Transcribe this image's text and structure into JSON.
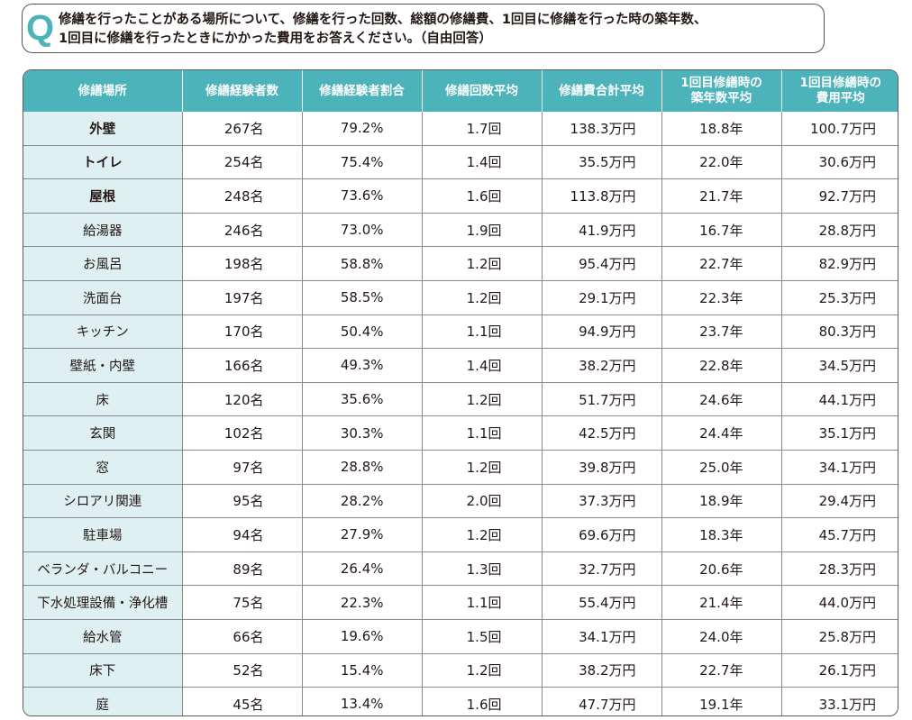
{
  "question": {
    "icon": "Q",
    "line1": "修繕を行ったことがある場所について、修繕を行った回数、総額の修繕費、1回目に修繕を行った時の築年数、",
    "line2": "1回目に修繕を行ったときにかかった費用をお答えください。（自由回答）"
  },
  "table": {
    "headers": [
      {
        "line1": "修繕場所",
        "line2": ""
      },
      {
        "line1": "修繕経験者数",
        "line2": ""
      },
      {
        "line1": "修繕経験者割合",
        "line2": ""
      },
      {
        "line1": "修繕回数平均",
        "line2": ""
      },
      {
        "line1": "修繕費合計平均",
        "line2": ""
      },
      {
        "line1": "1回目修繕時の",
        "line2": "築年数平均"
      },
      {
        "line1": "1回目修繕時の",
        "line2": "費用平均"
      }
    ],
    "rows": [
      [
        "外壁",
        "267名",
        "79.2%",
        "1.7回",
        "138.3万円",
        "18.8年",
        "100.7万円"
      ],
      [
        "トイレ",
        "254名",
        "75.4%",
        "1.4回",
        "35.5万円",
        "22.0年",
        "30.6万円"
      ],
      [
        "屋根",
        "248名",
        "73.6%",
        "1.6回",
        "113.8万円",
        "21.7年",
        "92.7万円"
      ],
      [
        "給湯器",
        "246名",
        "73.0%",
        "1.9回",
        "41.9万円",
        "16.7年",
        "28.8万円"
      ],
      [
        "お風呂",
        "198名",
        "58.8%",
        "1.2回",
        "95.4万円",
        "22.7年",
        "82.9万円"
      ],
      [
        "洗面台",
        "197名",
        "58.5%",
        "1.2回",
        "29.1万円",
        "22.3年",
        "25.3万円"
      ],
      [
        "キッチン",
        "170名",
        "50.4%",
        "1.1回",
        "94.9万円",
        "23.7年",
        "80.3万円"
      ],
      [
        "壁紙・内壁",
        "166名",
        "49.3%",
        "1.4回",
        "38.2万円",
        "22.8年",
        "34.5万円"
      ],
      [
        "床",
        "120名",
        "35.6%",
        "1.2回",
        "51.7万円",
        "24.6年",
        "44.1万円"
      ],
      [
        "玄関",
        "102名",
        "30.3%",
        "1.1回",
        "42.5万円",
        "24.4年",
        "35.1万円"
      ],
      [
        "窓",
        "97名",
        "28.8%",
        "1.2回",
        "39.8万円",
        "25.0年",
        "34.1万円"
      ],
      [
        "シロアリ関連",
        "95名",
        "28.2%",
        "2.0回",
        "37.3万円",
        "18.9年",
        "29.4万円"
      ],
      [
        "駐車場",
        "94名",
        "27.9%",
        "1.2回",
        "69.6万円",
        "18.3年",
        "45.7万円"
      ],
      [
        "ベランダ・バルコニー",
        "89名",
        "26.4%",
        "1.3回",
        "32.7万円",
        "20.6年",
        "28.3万円"
      ],
      [
        "下水処理設備・浄化槽",
        "75名",
        "22.3%",
        "1.1回",
        "55.4万円",
        "21.4年",
        "44.0万円"
      ],
      [
        "給水管",
        "66名",
        "19.6%",
        "1.5回",
        "34.1万円",
        "24.0年",
        "25.8万円"
      ],
      [
        "床下",
        "52名",
        "15.4%",
        "1.2回",
        "38.2万円",
        "22.7年",
        "26.1万円"
      ],
      [
        "庭",
        "45名",
        "13.4%",
        "1.6回",
        "47.7万円",
        "19.1年",
        "33.1万円"
      ]
    ]
  },
  "colors": {
    "header_bg": "#4db3bb",
    "place_bg": "#dff0f2",
    "q_icon": "#4db3bb"
  }
}
